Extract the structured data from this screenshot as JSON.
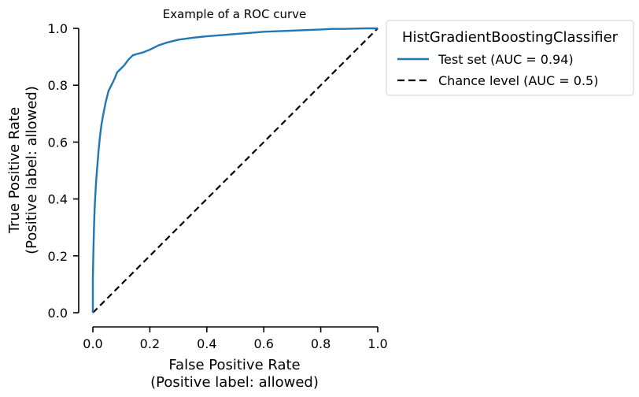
{
  "chart_data": {
    "type": "line",
    "title": "Example of a ROC curve",
    "xlabel": [
      "False Positive Rate",
      "(Positive label: allowed)"
    ],
    "ylabel": [
      "True Positive Rate",
      "(Positive label: allowed)"
    ],
    "xlim": [
      0,
      1
    ],
    "ylim": [
      0,
      1
    ],
    "xticks": [
      "0.0",
      "0.2",
      "0.4",
      "0.6",
      "0.8",
      "1.0"
    ],
    "yticks": [
      "0.0",
      "0.2",
      "0.4",
      "0.6",
      "0.8",
      "1.0"
    ],
    "grid": false,
    "legend": {
      "title": "HistGradientBoostingClassifier",
      "placement": "outside upper right"
    },
    "series": [
      {
        "name": "Test set (AUC = 0.94)",
        "color": "#1f77b4",
        "style": "solid",
        "x": [
          0.0,
          0.0,
          0.002,
          0.004,
          0.006,
          0.009,
          0.012,
          0.016,
          0.02,
          0.025,
          0.03,
          0.037,
          0.045,
          0.055,
          0.065,
          0.075,
          0.085,
          0.095,
          0.11,
          0.125,
          0.14,
          0.155,
          0.175,
          0.2,
          0.23,
          0.26,
          0.3,
          0.35,
          0.4,
          0.45,
          0.5,
          0.55,
          0.6,
          0.65,
          0.7,
          0.75,
          0.8,
          0.84,
          0.88,
          0.92,
          0.96,
          1.0
        ],
        "y": [
          0.0,
          0.12,
          0.22,
          0.3,
          0.36,
          0.42,
          0.47,
          0.52,
          0.57,
          0.62,
          0.66,
          0.7,
          0.74,
          0.78,
          0.8,
          0.82,
          0.845,
          0.855,
          0.87,
          0.89,
          0.905,
          0.91,
          0.915,
          0.925,
          0.94,
          0.95,
          0.96,
          0.967,
          0.972,
          0.976,
          0.98,
          0.984,
          0.988,
          0.99,
          0.992,
          0.994,
          0.996,
          0.998,
          0.998,
          0.999,
          1.0,
          1.0
        ]
      },
      {
        "name": "Chance level (AUC = 0.5)",
        "color": "#000000",
        "style": "dashed",
        "x": [
          0,
          1
        ],
        "y": [
          0,
          1
        ]
      }
    ]
  }
}
